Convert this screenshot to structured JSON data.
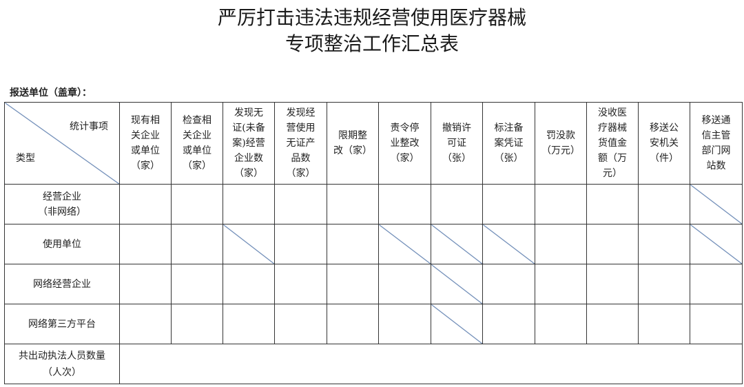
{
  "title_line1": "严厉打击违法违规经营使用医疗器械",
  "title_line2": "专项整治工作汇总表",
  "submit_unit_label": "报送单位（盖章）：",
  "corner": {
    "top_right": "统计事项",
    "bottom_left": "类型"
  },
  "columns": [
    "现有相\n关企业\n或单位\n（家）",
    "检查相\n关企业\n或单位\n（家）",
    "发现无\n证(未备\n案)经营\n企业数\n（家）",
    "发现经\n营使用\n无证产\n品数\n（家）",
    "限期整\n改（家）",
    "责令停\n业整改\n（家）",
    "撤销许\n可证\n（张）",
    "标注备\n案凭证\n（张）",
    "罚没款\n（万元）",
    "没收医\n疗器械\n货值金\n额（万\n元）",
    "移送公\n安机关\n（件）",
    "移送通\n信主管\n部门网\n站数"
  ],
  "rows": [
    {
      "label": "经营企业\n（非网络）",
      "slashed_columns": [
        12
      ]
    },
    {
      "label": "使用单位",
      "slashed_columns": [
        3,
        6,
        7,
        8,
        12
      ]
    },
    {
      "label": "网络经营企业",
      "slashed_columns": [
        7
      ]
    },
    {
      "label": "网络第三方平台",
      "slashed_columns": [
        7
      ]
    }
  ],
  "footer_row_label": "共出动执法人员数量\n（人次）",
  "colors": {
    "grid": "#333333",
    "slash": "#4a6fa5"
  }
}
